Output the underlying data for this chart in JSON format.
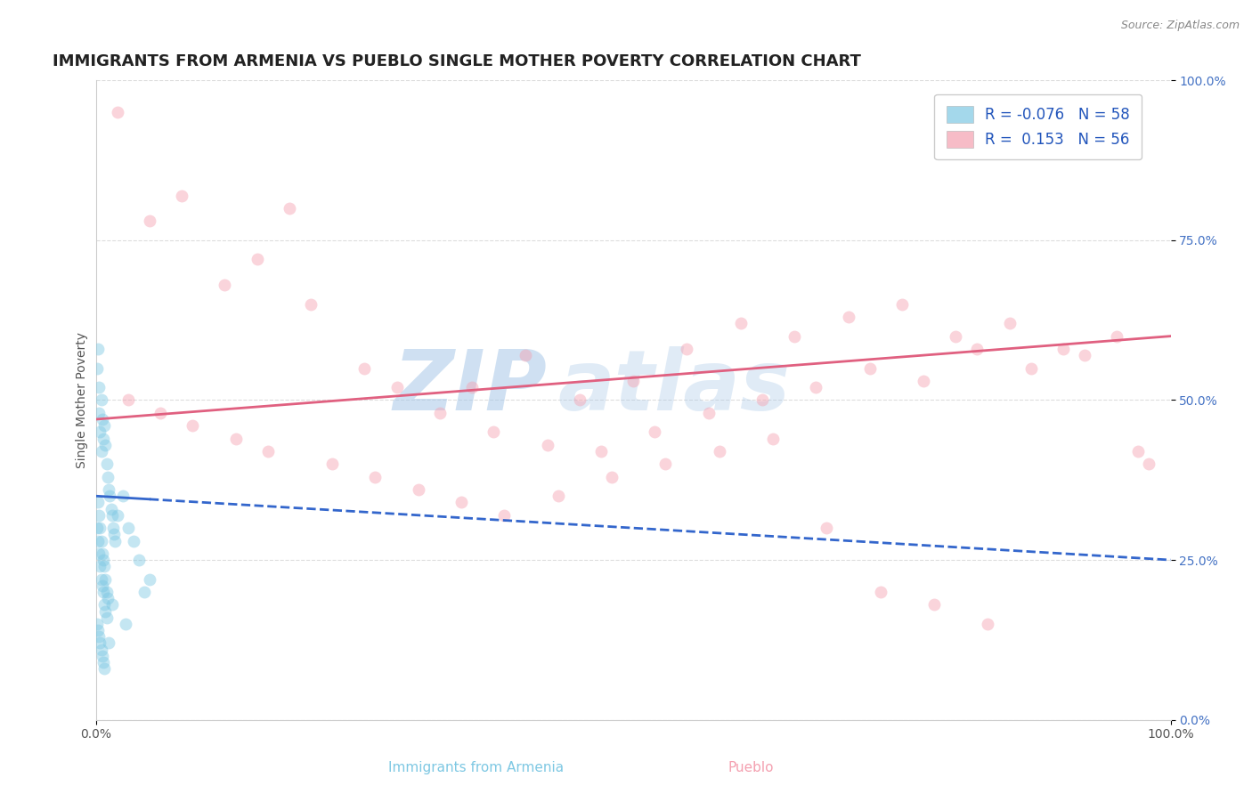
{
  "title": "IMMIGRANTS FROM ARMENIA VS PUEBLO SINGLE MOTHER POVERTY CORRELATION CHART",
  "source": "Source: ZipAtlas.com",
  "ylabel": "Single Mother Poverty",
  "legend_labels": [
    "Immigrants from Armenia",
    "Pueblo"
  ],
  "r_values": [
    -0.076,
    0.153
  ],
  "n_values": [
    58,
    56
  ],
  "blue_color": "#7ec8e3",
  "pink_color": "#f4a0b0",
  "blue_line_color": "#3366cc",
  "pink_line_color": "#e06080",
  "blue_scatter": [
    [
      0.1,
      55.0
    ],
    [
      0.2,
      58.0
    ],
    [
      0.3,
      52.0
    ],
    [
      0.3,
      48.0
    ],
    [
      0.4,
      45.0
    ],
    [
      0.5,
      50.0
    ],
    [
      0.5,
      42.0
    ],
    [
      0.6,
      47.0
    ],
    [
      0.7,
      44.0
    ],
    [
      0.8,
      46.0
    ],
    [
      0.9,
      43.0
    ],
    [
      1.0,
      40.0
    ],
    [
      1.1,
      38.0
    ],
    [
      1.2,
      36.0
    ],
    [
      1.3,
      35.0
    ],
    [
      1.4,
      33.0
    ],
    [
      1.5,
      32.0
    ],
    [
      1.6,
      30.0
    ],
    [
      1.7,
      29.0
    ],
    [
      1.8,
      28.0
    ],
    [
      0.2,
      34.0
    ],
    [
      0.3,
      32.0
    ],
    [
      0.4,
      30.0
    ],
    [
      0.5,
      28.0
    ],
    [
      0.6,
      26.0
    ],
    [
      0.7,
      25.0
    ],
    [
      0.8,
      24.0
    ],
    [
      0.9,
      22.0
    ],
    [
      1.0,
      20.0
    ],
    [
      1.1,
      19.0
    ],
    [
      0.1,
      30.0
    ],
    [
      0.2,
      28.0
    ],
    [
      0.3,
      26.0
    ],
    [
      0.4,
      24.0
    ],
    [
      0.5,
      22.0
    ],
    [
      0.6,
      21.0
    ],
    [
      0.7,
      20.0
    ],
    [
      0.8,
      18.0
    ],
    [
      0.9,
      17.0
    ],
    [
      1.0,
      16.0
    ],
    [
      0.1,
      15.0
    ],
    [
      0.2,
      14.0
    ],
    [
      0.3,
      13.0
    ],
    [
      0.4,
      12.0
    ],
    [
      0.5,
      11.0
    ],
    [
      0.6,
      10.0
    ],
    [
      0.7,
      9.0
    ],
    [
      0.8,
      8.0
    ],
    [
      2.5,
      35.0
    ],
    [
      3.0,
      30.0
    ],
    [
      4.0,
      25.0
    ],
    [
      5.0,
      22.0
    ],
    [
      2.0,
      32.0
    ],
    [
      3.5,
      28.0
    ],
    [
      4.5,
      20.0
    ],
    [
      1.5,
      18.0
    ],
    [
      2.8,
      15.0
    ],
    [
      1.2,
      12.0
    ]
  ],
  "pink_scatter": [
    [
      2.0,
      95.0
    ],
    [
      18.0,
      80.0
    ],
    [
      25.0,
      55.0
    ],
    [
      35.0,
      52.0
    ],
    [
      40.0,
      57.0
    ],
    [
      45.0,
      50.0
    ],
    [
      50.0,
      53.0
    ],
    [
      55.0,
      58.0
    ],
    [
      60.0,
      62.0
    ],
    [
      65.0,
      60.0
    ],
    [
      70.0,
      63.0
    ],
    [
      75.0,
      65.0
    ],
    [
      80.0,
      60.0
    ],
    [
      85.0,
      62.0
    ],
    [
      90.0,
      58.0
    ],
    [
      5.0,
      78.0
    ],
    [
      8.0,
      82.0
    ],
    [
      12.0,
      68.0
    ],
    [
      15.0,
      72.0
    ],
    [
      20.0,
      65.0
    ],
    [
      28.0,
      52.0
    ],
    [
      32.0,
      48.0
    ],
    [
      37.0,
      45.0
    ],
    [
      42.0,
      43.0
    ],
    [
      47.0,
      42.0
    ],
    [
      52.0,
      45.0
    ],
    [
      57.0,
      48.0
    ],
    [
      62.0,
      50.0
    ],
    [
      67.0,
      52.0
    ],
    [
      72.0,
      55.0
    ],
    [
      77.0,
      53.0
    ],
    [
      82.0,
      58.0
    ],
    [
      87.0,
      55.0
    ],
    [
      92.0,
      57.0
    ],
    [
      97.0,
      42.0
    ],
    [
      3.0,
      50.0
    ],
    [
      6.0,
      48.0
    ],
    [
      9.0,
      46.0
    ],
    [
      13.0,
      44.0
    ],
    [
      16.0,
      42.0
    ],
    [
      22.0,
      40.0
    ],
    [
      26.0,
      38.0
    ],
    [
      30.0,
      36.0
    ],
    [
      34.0,
      34.0
    ],
    [
      38.0,
      32.0
    ],
    [
      43.0,
      35.0
    ],
    [
      48.0,
      38.0
    ],
    [
      53.0,
      40.0
    ],
    [
      58.0,
      42.0
    ],
    [
      63.0,
      44.0
    ],
    [
      68.0,
      30.0
    ],
    [
      73.0,
      20.0
    ],
    [
      78.0,
      18.0
    ],
    [
      83.0,
      15.0
    ],
    [
      95.0,
      60.0
    ],
    [
      98.0,
      40.0
    ]
  ],
  "watermark_line1": "ZIP",
  "watermark_line2": "atlas",
  "watermark_color": "#a8c8e8",
  "background_color": "#ffffff",
  "xlim": [
    0,
    100
  ],
  "ylim": [
    0,
    100
  ],
  "ytick_positions": [
    0,
    25,
    50,
    75,
    100
  ],
  "ytick_labels": [
    "0.0%",
    "25.0%",
    "50.0%",
    "75.0%",
    "100.0%"
  ],
  "xtick_positions": [
    0,
    100
  ],
  "xtick_labels": [
    "0.0%",
    "100.0%"
  ],
  "grid_color": "#dddddd",
  "title_color": "#222222",
  "axis_label_color": "#555555",
  "title_fontsize": 13,
  "label_fontsize": 10,
  "tick_fontsize": 10,
  "scatter_size": 100,
  "scatter_alpha": 0.45,
  "blue_solid_xmax": 5.0,
  "blue_line_start_y": 35.0,
  "blue_line_end_y": 25.0,
  "pink_line_start_y": 47.0,
  "pink_line_end_y": 60.0
}
